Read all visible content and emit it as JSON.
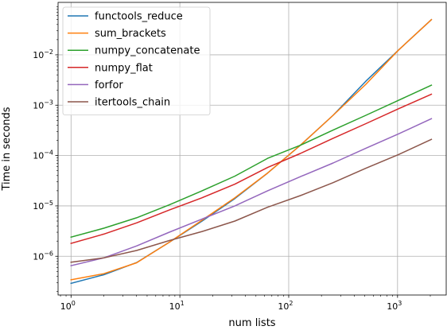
{
  "chart_data": {
    "type": "line",
    "xscale": "log",
    "yscale": "log",
    "xlabel": "num lists",
    "ylabel": "Time in seconds",
    "xlim": [
      0.76,
      2800
    ],
    "ylim": [
      1.7e-07,
      0.11
    ],
    "grid": true,
    "legend_position": "top-left",
    "x_ticks": [
      {
        "value": 1,
        "base": "10",
        "exp": "0"
      },
      {
        "value": 10,
        "base": "10",
        "exp": "1"
      },
      {
        "value": 100,
        "base": "10",
        "exp": "2"
      },
      {
        "value": 1000,
        "base": "10",
        "exp": "3"
      }
    ],
    "y_ticks": [
      {
        "value": 1e-06,
        "base": "10",
        "exp": "−6"
      },
      {
        "value": 1e-05,
        "base": "10",
        "exp": "−5"
      },
      {
        "value": 0.0001,
        "base": "10",
        "exp": "−4"
      },
      {
        "value": 0.001,
        "base": "10",
        "exp": "−3"
      },
      {
        "value": 0.01,
        "base": "10",
        "exp": "−2"
      }
    ],
    "x": [
      1,
      2,
      4,
      8,
      16,
      32,
      64,
      128,
      256,
      512,
      1024,
      2048
    ],
    "series": [
      {
        "name": "functools_reduce",
        "color": "#1f77b4",
        "values": [
          2.9e-07,
          4.3e-07,
          7.5e-07,
          1.9e-06,
          5e-06,
          1.4e-05,
          4.5e-05,
          0.00016,
          0.00063,
          0.003,
          0.0125,
          0.05
        ]
      },
      {
        "name": "sum_brackets",
        "color": "#ff7f0e",
        "values": [
          3.4e-07,
          4.5e-07,
          7.4e-07,
          1.9e-06,
          5.2e-06,
          1.45e-05,
          4.5e-05,
          0.00016,
          0.00063,
          0.0026,
          0.0125,
          0.05
        ]
      },
      {
        "name": "numpy_concatenate",
        "color": "#2ca02c",
        "values": [
          2.4e-06,
          3.6e-06,
          5.8e-06,
          1.05e-05,
          2e-05,
          3.9e-05,
          8.8e-05,
          0.00016,
          0.00032,
          0.00063,
          0.00125,
          0.0025
        ]
      },
      {
        "name": "numpy_flat",
        "color": "#d62728",
        "values": [
          1.8e-06,
          2.75e-06,
          4.6e-06,
          8.3e-06,
          1.45e-05,
          2.7e-05,
          5.8e-05,
          0.00011,
          0.00022,
          0.00043,
          0.00085,
          0.00165
        ]
      },
      {
        "name": "forfor",
        "color": "#9467bd",
        "values": [
          6.5e-07,
          9.3e-07,
          1.6e-06,
          3e-06,
          5.5e-06,
          1e-05,
          2e-05,
          3.8e-05,
          7.1e-05,
          0.00014,
          0.00027,
          0.00054
        ]
      },
      {
        "name": "itertools_chain",
        "color": "#8c564b",
        "values": [
          7.6e-07,
          9.3e-07,
          1.3e-06,
          2.05e-06,
          3.1e-06,
          5e-06,
          9.4e-06,
          1.6e-05,
          2.9e-05,
          5.6e-05,
          0.000105,
          0.00021
        ]
      }
    ]
  }
}
